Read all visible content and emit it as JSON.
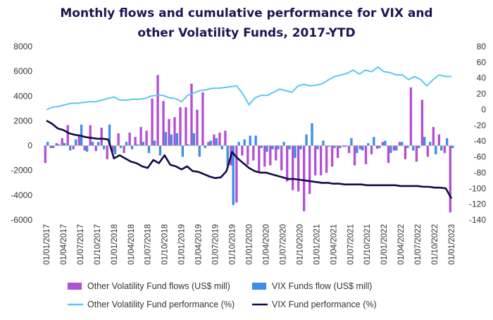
{
  "chart_data": {
    "type": "bar+line",
    "title_lines": [
      "Monthly flows and cumulative performance for VIX and",
      "other Volatility Funds, 2017-YTD"
    ],
    "y_left": {
      "min": -6000,
      "max": 8000,
      "ticks": [
        "-6000",
        "-4000",
        "-2000",
        "0",
        "2000",
        "4000",
        "6000",
        "8000"
      ]
    },
    "y_right": {
      "min": -140,
      "max": 80,
      "ticks": [
        "-140",
        "-120",
        "-100",
        "-80",
        "-60",
        "-40",
        "-20",
        "0",
        "20",
        "40",
        "60",
        "80"
      ]
    },
    "x_tick_labels": [
      "01/01/2017",
      "01/04/2017",
      "01/07/2017",
      "01/10/2017",
      "01/01/2018",
      "01/04/2018",
      "01/07/2018",
      "01/10/2018",
      "01/01/2019",
      "01/04/2019",
      "01/07/2019",
      "01/10/2019",
      "01/01/2020",
      "01/04/2020",
      "01/07/2020",
      "01/10/2020",
      "01/01/2021",
      "01/04/2021",
      "01/07/2021",
      "01/10/2021",
      "01/01/2022",
      "01/04/2022",
      "01/07/2022",
      "01/10/2022",
      "01/01/2023"
    ],
    "series": [
      {
        "name": "Other Volatility Fund flows (US$ mill)",
        "kind": "bar",
        "axis": "left",
        "color": "#b34fd6",
        "values": [
          -1400,
          -200,
          200,
          600,
          1650,
          -300,
          900,
          -400,
          1650,
          -450,
          1450,
          -1100,
          -500,
          1000,
          -600,
          1050,
          700,
          1500,
          1200,
          3800,
          5700,
          3600,
          2150,
          2300,
          3100,
          3100,
          5000,
          2900,
          4300,
          300,
          900,
          1050,
          1200,
          -1600,
          -4600,
          -800,
          -1550,
          -1200,
          -2150,
          -1700,
          -1600,
          -1200,
          -2000,
          -2900,
          -3600,
          -3700,
          -5300,
          -3900,
          -2400,
          -2400,
          -2200,
          -1700,
          -1000,
          -100,
          -600,
          -1600,
          -300,
          -1500,
          -700,
          -250,
          300,
          -1400,
          -400,
          300,
          -1100,
          4700,
          -1300,
          3700,
          -900,
          1500,
          900,
          -600,
          -5400
        ],
        "color_hex": "#b34fd6"
      },
      {
        "name": "VIX Funds flow (US$ mill)",
        "kind": "bar",
        "axis": "left",
        "color": "#3d8ee6",
        "values": [
          300,
          -200,
          100,
          200,
          -400,
          500,
          1700,
          -500,
          300,
          300,
          -300,
          1700,
          -700,
          -200,
          300,
          -300,
          100,
          300,
          -600,
          400,
          -800,
          1100,
          900,
          1000,
          -900,
          100,
          1000,
          -900,
          -200,
          400,
          600,
          -300,
          -1600,
          -4800,
          300,
          500,
          800,
          800,
          -200,
          -500,
          -300,
          -300,
          300,
          -300,
          -1000,
          -300,
          900,
          1800,
          -300,
          400,
          -100,
          -200,
          -200,
          -100,
          600,
          -600,
          -400,
          200,
          700,
          -200,
          400,
          -600,
          -400,
          300,
          -200,
          -400,
          -200,
          700,
          300,
          -700,
          -400,
          600,
          -200
        ],
        "color_hex": "#3d8ee6"
      },
      {
        "name": "Other Volatility Fund performance (%)",
        "kind": "line",
        "axis": "right",
        "color": "#5ac8f0",
        "values": [
          0,
          3,
          4,
          6,
          8,
          8,
          9,
          10,
          10,
          12,
          14,
          16,
          12,
          12,
          13,
          13,
          14,
          17,
          18,
          18,
          15,
          14,
          10,
          18,
          21,
          24,
          25,
          27,
          27,
          28,
          29,
          30,
          20,
          6,
          15,
          18,
          18,
          22,
          26,
          24,
          22,
          30,
          32,
          30,
          31,
          33,
          38,
          42,
          44,
          46,
          50,
          45,
          50,
          48,
          54,
          48,
          47,
          44,
          44,
          38,
          42,
          38,
          30,
          38,
          44,
          42,
          42
        ],
        "color_hex": "#5ac8f0"
      },
      {
        "name": "VIX Fund performance (%)",
        "kind": "line",
        "axis": "right",
        "color": "#120a4a",
        "values": [
          -14,
          -18,
          -24,
          -26,
          -30,
          -32,
          -33,
          -35,
          -36,
          -37,
          -37,
          -38,
          -62,
          -58,
          -62,
          -66,
          -68,
          -72,
          -74,
          -64,
          -68,
          -58,
          -70,
          -72,
          -76,
          -72,
          -78,
          -79,
          -82,
          -85,
          -87,
          -86,
          -78,
          -54,
          -62,
          -68,
          -74,
          -78,
          -80,
          -80,
          -82,
          -84,
          -86,
          -88,
          -88,
          -89,
          -90,
          -91,
          -92,
          -93,
          -93,
          -94,
          -94,
          -95,
          -95,
          -95,
          -95,
          -96,
          -96,
          -96,
          -96,
          -96,
          -96,
          -97,
          -97,
          -97,
          -97,
          -98,
          -98,
          -99,
          -99,
          -100,
          -113
        ],
        "color_hex": "#120a4a"
      }
    ],
    "legend": [
      {
        "label": "Other Volatility Fund flows (US$ mill)",
        "kind": "bar",
        "color": "#b34fd6"
      },
      {
        "label": "VIX Funds flow (US$ mill)",
        "kind": "bar",
        "color": "#3d8ee6"
      },
      {
        "label": "Other Volatility Fund performance (%)",
        "kind": "line",
        "color": "#5ac8f0"
      },
      {
        "label": "VIX Fund performance (%)",
        "kind": "line",
        "color": "#120a4a"
      }
    ],
    "legend_position": "bottom",
    "grid": false
  }
}
